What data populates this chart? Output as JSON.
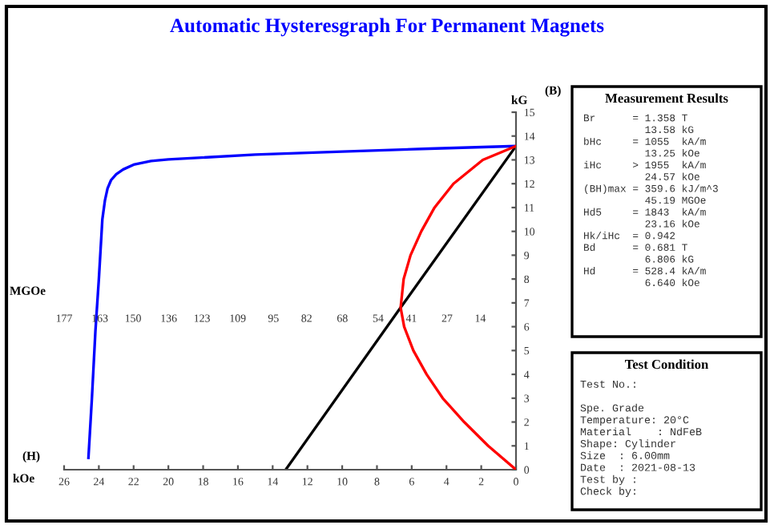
{
  "chart_data": {
    "type": "line",
    "title": "Automatic Hysteresgraph For Permanent Magnets",
    "xlabel": "kOe",
    "ylabel": "kG",
    "x2label": "MGOe",
    "xlim": [
      26,
      0
    ],
    "xticks": [
      26,
      24,
      22,
      20,
      18,
      16,
      14,
      12,
      10,
      8,
      6,
      4,
      2,
      0
    ],
    "x2lim": [
      177,
      0
    ],
    "x2ticks": [
      177,
      163,
      150,
      136,
      123,
      109,
      95,
      82,
      68,
      54,
      41,
      27,
      14
    ],
    "ylim": [
      0,
      15
    ],
    "yticks": [
      0,
      1,
      2,
      3,
      4,
      5,
      6,
      7,
      8,
      9,
      10,
      11,
      12,
      13,
      14,
      15
    ],
    "series": [
      {
        "color": "#0000ff",
        "x": [
          0,
          5,
          10,
          15,
          20,
          21,
          22,
          22.6,
          23.0,
          23.3,
          23.5,
          23.65,
          23.8,
          24.0,
          24.2,
          24.4,
          24.6
        ],
        "values": [
          13.58,
          13.47,
          13.35,
          13.22,
          13.02,
          12.95,
          12.8,
          12.6,
          12.4,
          12.15,
          11.8,
          11.3,
          10.5,
          8,
          5.8,
          3,
          0.5
        ]
      },
      {
        "color": "#000000",
        "x": [
          0,
          6.64,
          13.25
        ],
        "values": [
          13.58,
          6.8,
          0
        ]
      },
      {
        "color": "#ff0000",
        "axis": "x2",
        "x": [
          0,
          10.9,
          20.3,
          28.7,
          35.0,
          40.2,
          43.8,
          45.19,
          44.0,
          41.3,
          37.1,
          31.9,
          24.5,
          13.0,
          0
        ],
        "values": [
          0,
          1,
          2,
          3,
          4,
          5,
          6,
          6.8,
          8,
          9,
          10,
          11,
          12,
          13,
          13.58
        ]
      }
    ],
    "annotations": [
      "(H)",
      "(B)",
      "Measurement Results",
      "Br      = 1.358 T\n          13.58 kG\nbHc     = 1055  kA/m\n          13.25 kOe\niHc     > 1955  kA/m\n          24.57 kOe\n(BH)max = 359.6 kJ/m^3\n          45.19 MGOe\nHd5     = 1843  kA/m\n          23.16 kOe\nHk/iHc  = 0.942\nBd      = 0.681 T\n          6.806 kG\nHd      = 528.4 kA/m\n          6.640 kOe",
      "Test Condition",
      "Test No.:\n\nSpe. Grade\nTemperature: 20°C\nMaterial    : NdFeB\nShape: Cylinder\nSize  : 6.00mm\nDate  : 2021-08-13\nTest by :\nCheck by:"
    ]
  }
}
